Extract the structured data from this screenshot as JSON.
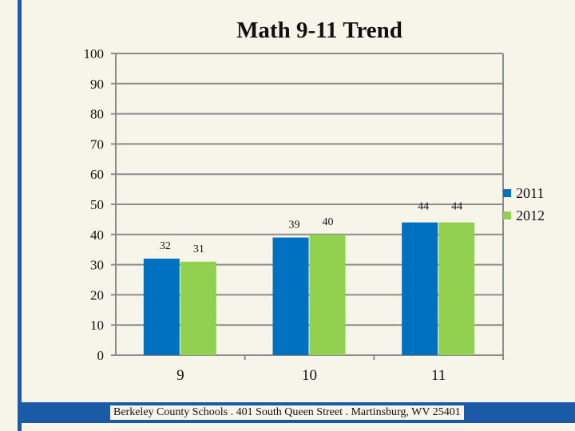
{
  "slide": {
    "title": "Math 9-11 Trend",
    "footer": "Berkeley County Schools . 401 South Queen Street . Martinsburg, WV  25401",
    "accent_color": "#1a5aa6",
    "background_color": "#f7f4ea"
  },
  "chart_data": {
    "type": "bar",
    "title": "Math 9-11 Trend",
    "xlabel": "",
    "ylabel": "",
    "ylim": [
      0,
      100
    ],
    "yticks": [
      0,
      10,
      20,
      30,
      40,
      50,
      60,
      70,
      80,
      90,
      100
    ],
    "grid": true,
    "legend_position": "right",
    "categories": [
      "9",
      "10",
      "11"
    ],
    "series": [
      {
        "name": "2011",
        "color": "#0070c0",
        "values": [
          32,
          39,
          44
        ]
      },
      {
        "name": "2012",
        "color": "#92d050",
        "values": [
          31,
          40,
          44
        ]
      }
    ]
  }
}
